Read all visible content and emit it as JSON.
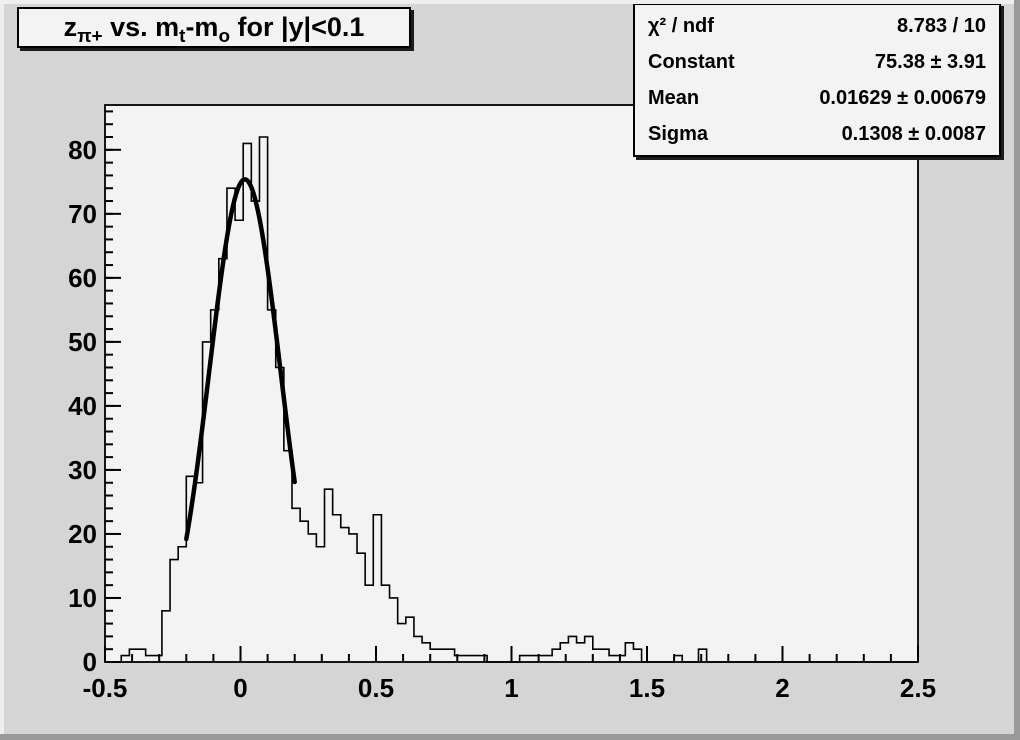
{
  "canvas": {
    "bg_color": "#d5d5d5",
    "plot_bg_color": "#f3f3f3",
    "box_bg_color": "#f3f3f3",
    "line_color": "#000000",
    "shadow_color": "#1c1c1c"
  },
  "title": {
    "plain": "z_{π+} vs. m_t-m_o for |y|<0.1",
    "segments": [
      {
        "text": "z"
      },
      {
        "text": "π+",
        "sub": true
      },
      {
        "text": " vs. m"
      },
      {
        "text": "t",
        "sub": true
      },
      {
        "text": "-m"
      },
      {
        "text": "o",
        "sub": true
      },
      {
        "text": " for |y|<0.1"
      }
    ]
  },
  "stats": {
    "rows": [
      {
        "label": "χ² / ndf",
        "value": "8.783 / 10"
      },
      {
        "label": "Constant",
        "value": "75.38 ± 3.91"
      },
      {
        "label": "Mean",
        "value": "0.01629 ± 0.00679"
      },
      {
        "label": "Sigma",
        "value": "0.1308 ± 0.0087"
      }
    ]
  },
  "chart_data": {
    "type": "bar",
    "subtype": "step-histogram",
    "title": "z_{π+} vs. m_t-m_o for |y|<0.1",
    "xlabel": "",
    "ylabel": "",
    "xlim": [
      -0.5,
      2.5
    ],
    "ylim": [
      0,
      87
    ],
    "grid": false,
    "legend": false,
    "bin_start": -0.5,
    "bin_width": 0.03,
    "n_bins": 100,
    "values": [
      0,
      0,
      1,
      2,
      2,
      1,
      1,
      8,
      16,
      18,
      29,
      28,
      50,
      55,
      63,
      74,
      69,
      81,
      72,
      82,
      55,
      46,
      33,
      24,
      22,
      20,
      18,
      27,
      23,
      21,
      20,
      17,
      12,
      23,
      12,
      10,
      6,
      7,
      4,
      3,
      2,
      2,
      2,
      1,
      1,
      1,
      1,
      0,
      0,
      0,
      0,
      1,
      1,
      1,
      1,
      2,
      3,
      4,
      3,
      4,
      2,
      2,
      1,
      1,
      3,
      2,
      0,
      0,
      0,
      0,
      1,
      0,
      0,
      2,
      0,
      0,
      0,
      0,
      0,
      0,
      0,
      0,
      0,
      0,
      0,
      0,
      0,
      0,
      0,
      0,
      0,
      0,
      0,
      0,
      0,
      0,
      0,
      0,
      0,
      0
    ],
    "x_major_ticks": [
      -0.5,
      0,
      0.5,
      1,
      1.5,
      2,
      2.5
    ],
    "x_tick_labels": [
      "-0.5",
      "0",
      "0.5",
      "1",
      "1.5",
      "2",
      "2.5"
    ],
    "x_minor_step": 0.1,
    "y_major_ticks": [
      0,
      10,
      20,
      30,
      40,
      50,
      60,
      70,
      80
    ],
    "y_tick_labels": [
      "0",
      "10",
      "20",
      "30",
      "40",
      "50",
      "60",
      "70",
      "80"
    ],
    "y_minor_step": 2,
    "fit": {
      "type": "gaussian",
      "chi2": 8.783,
      "ndf": 10,
      "constant": 75.38,
      "constant_err": 3.91,
      "mean": 0.01629,
      "mean_err": 0.00679,
      "sigma": 0.1308,
      "sigma_err": 0.0087,
      "draw_range": [
        -0.2,
        0.2
      ]
    }
  }
}
